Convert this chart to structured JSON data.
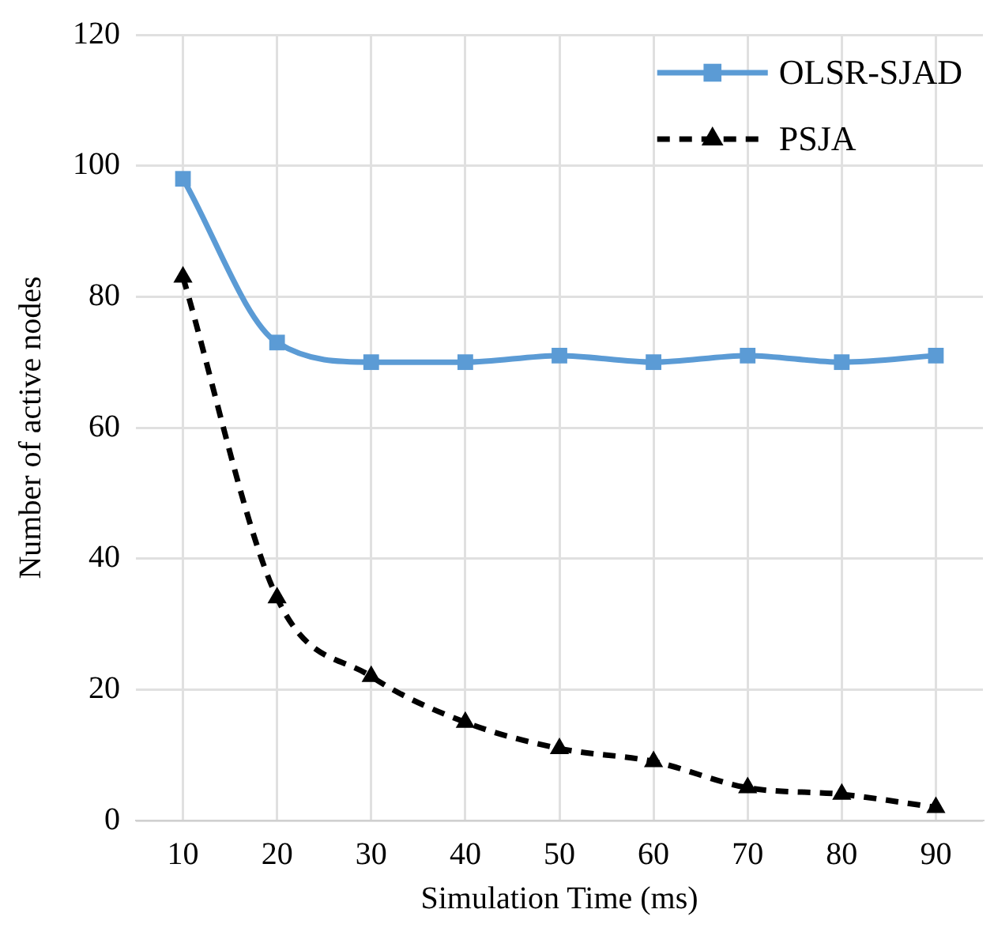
{
  "chart_data": {
    "type": "line",
    "xlabel": "Simulation Time (ms)",
    "ylabel": "Number of active nodes",
    "categories": [
      "10",
      "20",
      "30",
      "40",
      "50",
      "60",
      "70",
      "80",
      "90"
    ],
    "series": [
      {
        "name": "OLSR-SJAD",
        "color": "#5b9bd5",
        "values": [
          98,
          73,
          70,
          70,
          71,
          70,
          71,
          70,
          71
        ],
        "marker": "square",
        "line_style": "solid"
      },
      {
        "name": "PSJA",
        "color": "#000000",
        "values": [
          83,
          34,
          22,
          15,
          11,
          9,
          5,
          4,
          2
        ],
        "marker": "triangle",
        "line_style": "dashed"
      }
    ],
    "ylim": [
      0,
      120
    ],
    "yticks": [
      0,
      20,
      40,
      60,
      80,
      100,
      120
    ],
    "grid": true,
    "legend": "top right"
  }
}
